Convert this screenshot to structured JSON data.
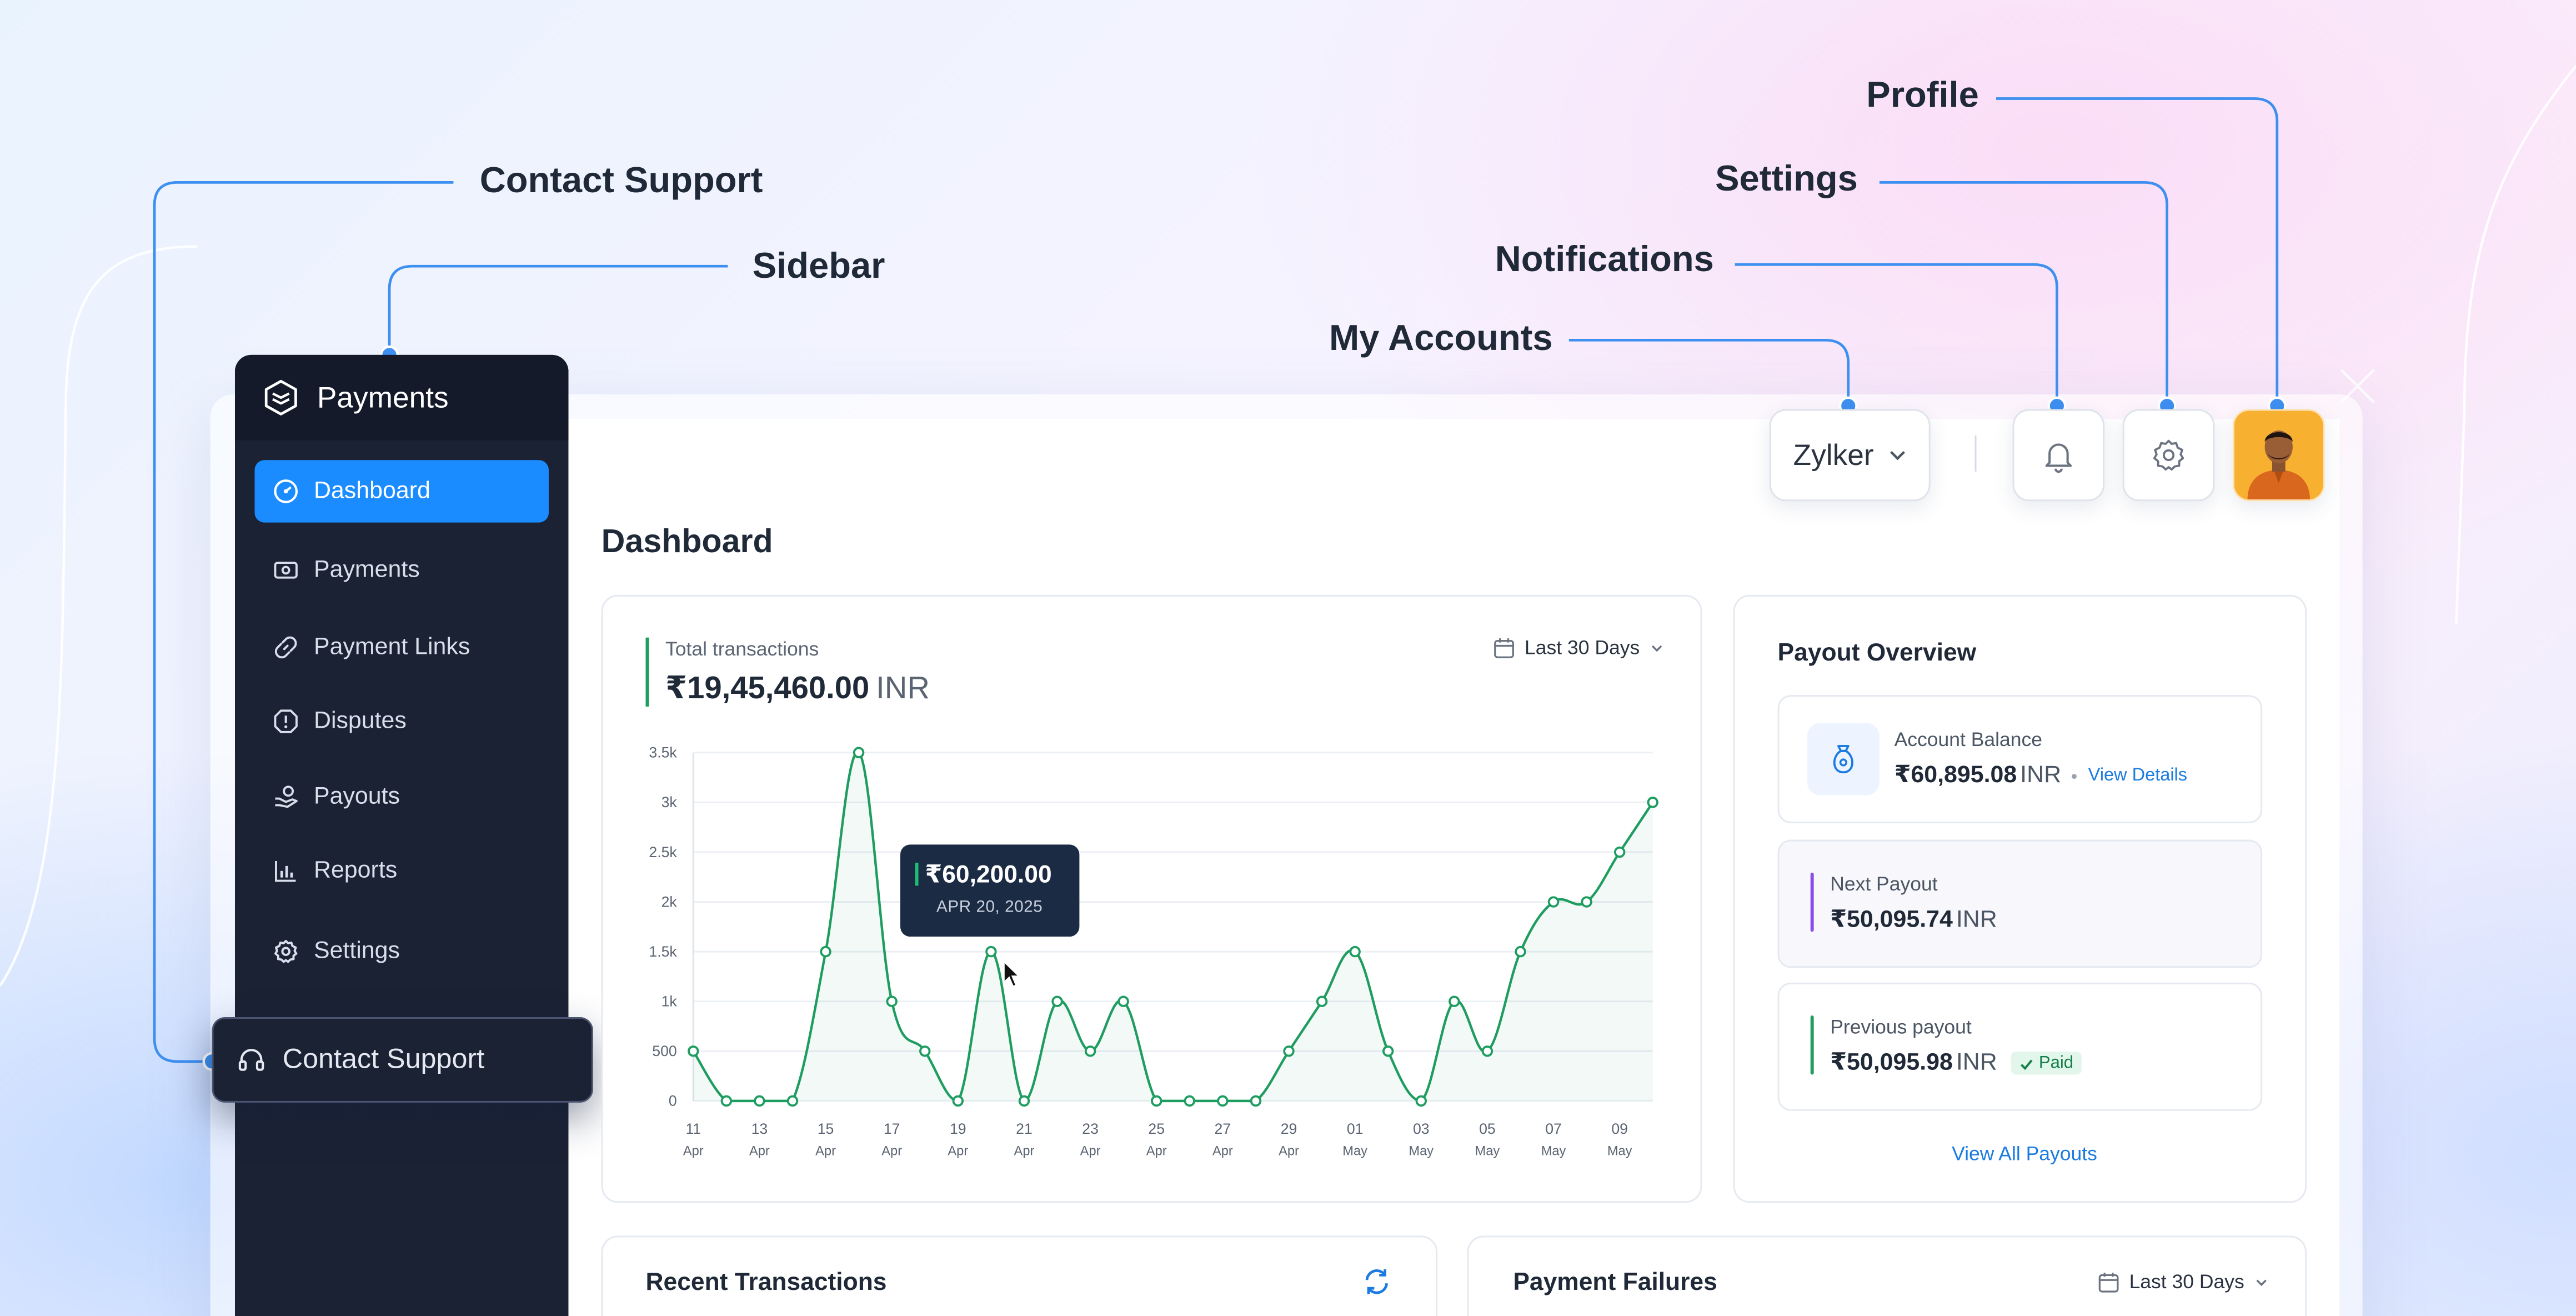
{
  "callouts": {
    "contact_support": "Contact Support",
    "sidebar": "Sidebar",
    "my_accounts": "My Accounts",
    "notifications": "Notifications",
    "settings": "Settings",
    "profile": "Profile"
  },
  "header": {
    "account_name": "Zylker"
  },
  "sidebar": {
    "app_name": "Payments",
    "items": [
      {
        "label": "Dashboard",
        "icon": "dashboard-icon",
        "active": true
      },
      {
        "label": "Payments",
        "icon": "payments-icon"
      },
      {
        "label": "Payment Links",
        "icon": "link-icon"
      },
      {
        "label": "Disputes",
        "icon": "alert-icon"
      },
      {
        "label": "Payouts",
        "icon": "hand-coin-icon"
      },
      {
        "label": "Reports",
        "icon": "bar-chart-icon"
      },
      {
        "label": "Settings",
        "icon": "gear-icon"
      }
    ],
    "contact_support": "Contact Support"
  },
  "page": {
    "title": "Dashboard"
  },
  "transactions_card": {
    "label": "Total transactions",
    "amount": "₹19,45,460.00",
    "unit": "INR",
    "range": "Last 30 Days"
  },
  "tooltip": {
    "amount": "₹60,200.00",
    "date": "APR 20, 2025"
  },
  "chart_data": {
    "type": "line",
    "title": "",
    "xlabel": "",
    "ylabel": "",
    "ylim": [
      0,
      3500
    ],
    "y_ticks": [
      "0",
      "500",
      "1k",
      "1.5k",
      "2k",
      "2.5k",
      "3k",
      "3.5k"
    ],
    "x_ticks": [
      {
        "day": "11",
        "month": "Apr"
      },
      {
        "day": "13",
        "month": "Apr"
      },
      {
        "day": "15",
        "month": "Apr"
      },
      {
        "day": "17",
        "month": "Apr"
      },
      {
        "day": "19",
        "month": "Apr"
      },
      {
        "day": "21",
        "month": "Apr"
      },
      {
        "day": "23",
        "month": "Apr"
      },
      {
        "day": "25",
        "month": "Apr"
      },
      {
        "day": "27",
        "month": "Apr"
      },
      {
        "day": "29",
        "month": "Apr"
      },
      {
        "day": "01",
        "month": "May"
      },
      {
        "day": "03",
        "month": "May"
      },
      {
        "day": "05",
        "month": "May"
      },
      {
        "day": "07",
        "month": "May"
      },
      {
        "day": "09",
        "month": "May"
      }
    ],
    "x": [
      "Apr 11",
      "Apr 12",
      "Apr 13",
      "Apr 14",
      "Apr 15",
      "Apr 16",
      "Apr 17",
      "Apr 18",
      "Apr 19",
      "Apr 20",
      "Apr 21",
      "Apr 22",
      "Apr 23",
      "Apr 24",
      "Apr 25",
      "Apr 26",
      "Apr 27",
      "Apr 28",
      "Apr 29",
      "Apr 30",
      "May 01",
      "May 02",
      "May 03",
      "May 04",
      "May 05",
      "May 06",
      "May 07",
      "May 08",
      "May 09",
      "May 10"
    ],
    "values": [
      500,
      0,
      0,
      0,
      1500,
      3500,
      1000,
      500,
      0,
      1500,
      0,
      1000,
      500,
      1000,
      0,
      0,
      0,
      0,
      500,
      1000,
      1500,
      500,
      0,
      1000,
      500,
      1500,
      2000,
      2000,
      2500,
      3000
    ],
    "color": "#1f9d61",
    "grid": true
  },
  "payout": {
    "title": "Payout Overview",
    "balance_label": "Account Balance",
    "balance_amount": "₹60,895.08",
    "balance_unit": "INR",
    "view_details": "View Details",
    "next_label": "Next Payout",
    "next_amount": "₹50,095.74",
    "next_unit": "INR",
    "prev_label": "Previous payout",
    "prev_amount": "₹50,095.98",
    "prev_unit": "INR",
    "paid": "Paid",
    "view_all": "View All Payouts"
  },
  "recent": {
    "title": "Recent Transactions"
  },
  "failures": {
    "title": "Payment Failures",
    "range": "Last 30 Days"
  },
  "colors": {
    "accent": "#1a8cff",
    "sidebar": "#1b2234",
    "success": "#1f9d61",
    "connector": "#3d8ff0"
  }
}
